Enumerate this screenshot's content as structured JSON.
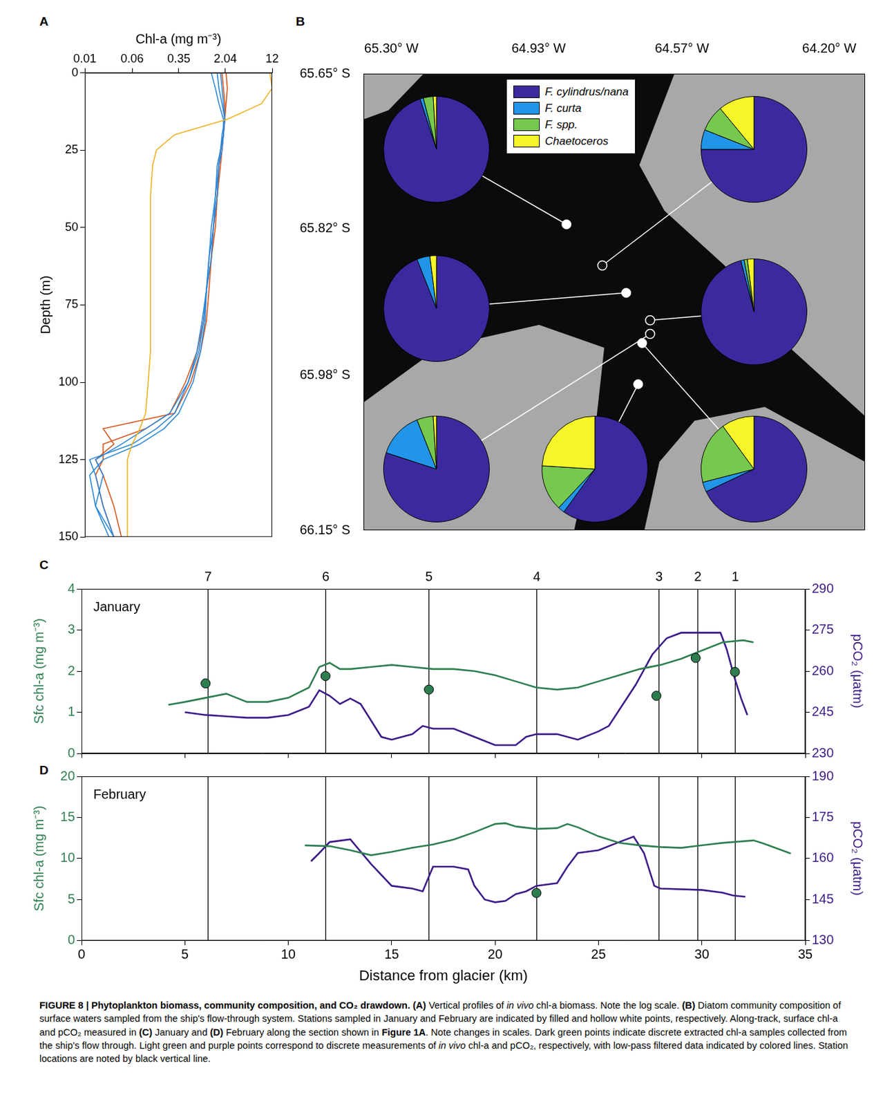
{
  "chart_data": [
    {
      "type": "line",
      "panel": "A",
      "log": "x",
      "grid": false,
      "x_label": "Chl-a (mg m⁻³)",
      "y_label": "Depth (m)",
      "xlim": [
        0.01,
        12
      ],
      "xticks": [
        0.01,
        0.06,
        0.35,
        2.04,
        12
      ],
      "ylim": [
        0,
        150
      ],
      "yticks": [
        0,
        25,
        50,
        75,
        100,
        125,
        150
      ],
      "y": [
        0,
        5,
        10,
        15,
        20,
        25,
        30,
        40,
        50,
        60,
        70,
        80,
        90,
        100,
        110,
        115,
        120,
        125,
        130,
        140,
        150
      ],
      "series": [
        {
          "color": "#edb120",
          "values": [
            11,
            12,
            8,
            2.2,
            0.3,
            0.15,
            0.13,
            0.12,
            0.12,
            0.12,
            0.12,
            0.12,
            0.12,
            0.11,
            0.1,
            0.08,
            0.06,
            0.05,
            0.05,
            0.05,
            0.05
          ]
        },
        {
          "color": "#2a86d8",
          "values": [
            1.5,
            1.6,
            1.8,
            2.0,
            1.9,
            1.8,
            1.6,
            1.5,
            1.3,
            1.2,
            1.0,
            0.9,
            0.75,
            0.5,
            0.3,
            0.15,
            0.06,
            0.012,
            0.015,
            0.02,
            0.03
          ]
        },
        {
          "color": "#2a86d8",
          "values": [
            1.2,
            1.4,
            1.6,
            1.9,
            1.9,
            1.7,
            1.6,
            1.4,
            1.3,
            1.1,
            1.0,
            0.95,
            0.8,
            0.6,
            0.35,
            0.2,
            0.08,
            0.02,
            0.012,
            0.015,
            0.025
          ]
        },
        {
          "color": "#2a86d8",
          "values": [
            1.7,
            1.8,
            1.9,
            2.0,
            1.8,
            1.7,
            1.5,
            1.4,
            1.2,
            1.1,
            1.0,
            0.85,
            0.7,
            0.5,
            0.25,
            0.1,
            0.04,
            0.015,
            0.02,
            0.015,
            0.03
          ]
        },
        {
          "color": "#d95319",
          "values": [
            1.8,
            1.9,
            2.0,
            2.0,
            1.9,
            1.7,
            1.6,
            1.5,
            1.3,
            1.2,
            1.1,
            1.0,
            0.8,
            0.55,
            0.3,
            0.02,
            0.03,
            0.015,
            0.02,
            0.03,
            0.04
          ]
        },
        {
          "color": "#d95319",
          "values": [
            2.1,
            2.2,
            2.1,
            2.0,
            1.9,
            1.8,
            1.7,
            1.5,
            1.4,
            1.2,
            1.0,
            0.9,
            0.7,
            0.45,
            0.25,
            0.1,
            0.02,
            0.02,
            0.015,
            0.02,
            0.03
          ]
        }
      ]
    },
    {
      "type": "pie",
      "panel": "B",
      "legend": "top",
      "categories": [
        "F. cylindrus/nana",
        "F. curta",
        "F. spp.",
        "Chaetoceros"
      ],
      "colors": [
        "#3b2a9e",
        "#2196e8",
        "#77c84e",
        "#f5f52a"
      ],
      "xlim": [
        -65.37,
        -64.11
      ],
      "xticks": [
        {
          "value": -65.3,
          "label": "65.30° W"
        },
        {
          "value": -64.93,
          "label": "64.93° W"
        },
        {
          "value": -64.57,
          "label": "64.57° W"
        },
        {
          "value": -64.2,
          "label": "64.20° W"
        }
      ],
      "ylim": [
        -66.15,
        -65.65
      ],
      "yticks": [
        {
          "value": -65.65,
          "label": "65.65° S"
        },
        {
          "value": -65.82,
          "label": "65.82° S"
        },
        {
          "value": -65.98,
          "label": "65.98° S"
        },
        {
          "value": -66.15,
          "label": "66.15° S"
        }
      ],
      "stations": [
        {
          "lon": -64.86,
          "lat": -65.815,
          "marker": "filled",
          "values": [
            95,
            1,
            3,
            1
          ]
        },
        {
          "lon": -64.77,
          "lat": -65.86,
          "marker": "hollow",
          "values": [
            75,
            6,
            8,
            11
          ]
        },
        {
          "lon": -64.71,
          "lat": -65.89,
          "marker": "filled",
          "values": [
            94,
            4,
            0,
            2
          ]
        },
        {
          "lon": -64.65,
          "lat": -65.92,
          "marker": "hollow",
          "values": [
            96,
            1,
            1,
            2
          ]
        },
        {
          "lon": -64.65,
          "lat": -65.935,
          "marker": "hollow",
          "values": [
            80,
            14,
            5,
            1
          ]
        },
        {
          "lon": -64.67,
          "lat": -65.945,
          "marker": "filled",
          "values": [
            68,
            3,
            19,
            10
          ]
        },
        {
          "lon": -64.68,
          "lat": -65.99,
          "marker": "filled",
          "values": [
            60,
            2,
            14,
            24
          ]
        }
      ]
    },
    {
      "type": "line",
      "panel": "C",
      "annotation": "January",
      "grid": false,
      "tick_labels": "y",
      "y_label": "Sfc chl-a (mg m⁻³)",
      "y2_label": "pCO₂ (μatm)",
      "xlim": [
        0,
        35
      ],
      "xticks": [
        0,
        5,
        10,
        15,
        20,
        25,
        30,
        35
      ],
      "ylim": [
        0,
        4
      ],
      "yticks": [
        0,
        1,
        2,
        3,
        4
      ],
      "y2lim": [
        230,
        290
      ],
      "y2ticks": [
        230,
        245,
        260,
        275,
        290
      ],
      "stations": {
        "x": [
          6.1,
          11.8,
          16.8,
          22.0,
          27.9,
          29.8,
          31.6
        ],
        "labels": [
          "7",
          "6",
          "5",
          "4",
          "3",
          "2",
          "1"
        ]
      },
      "series": [
        {
          "type": "line",
          "color": "#2e7f4f",
          "x": [
            4.2,
            5,
            6,
            7,
            7.5,
            8,
            9,
            10,
            11,
            11.5,
            12,
            12.5,
            13,
            14,
            15,
            16,
            17,
            18,
            19,
            20,
            21,
            22,
            23,
            24,
            25,
            26,
            27,
            28,
            29,
            30,
            31,
            32,
            32.5
          ],
          "values": [
            1.18,
            1.25,
            1.35,
            1.45,
            1.35,
            1.25,
            1.25,
            1.35,
            1.6,
            2.1,
            2.2,
            2.05,
            2.05,
            2.1,
            2.15,
            2.1,
            2.05,
            2.05,
            2.0,
            1.9,
            1.75,
            1.6,
            1.55,
            1.6,
            1.75,
            1.9,
            2.05,
            2.15,
            2.3,
            2.5,
            2.7,
            2.75,
            2.7
          ]
        },
        {
          "type": "line",
          "color": "#3d1a87",
          "axis": "y2",
          "x": [
            5,
            6,
            7,
            8,
            9,
            10,
            11,
            11.5,
            12,
            12.5,
            13,
            13.5,
            14,
            14.5,
            15,
            16,
            16.5,
            17,
            18,
            19,
            20,
            21,
            21.5,
            22,
            23,
            24,
            25,
            25.5,
            26.8,
            27.6,
            28.3,
            29,
            30.9,
            31.2,
            31.6,
            31.9,
            32.2
          ],
          "values": [
            245,
            244,
            243.5,
            243,
            243,
            244,
            247,
            253,
            251,
            248,
            250,
            248,
            242,
            236,
            235,
            237,
            240,
            239,
            239,
            236,
            233,
            233,
            236,
            237,
            237,
            235,
            238,
            240,
            255,
            266,
            272,
            274,
            274,
            268,
            257,
            250,
            244
          ]
        },
        {
          "type": "scatter",
          "marker": "circle",
          "color": "#2e7d4f",
          "x": [
            6.0,
            11.8,
            16.8,
            27.8,
            29.7,
            31.6
          ],
          "values": [
            1.7,
            1.88,
            1.55,
            1.4,
            2.32,
            1.98
          ]
        }
      ]
    },
    {
      "type": "line",
      "panel": "D",
      "annotation": "February",
      "grid": false,
      "x_label": "Distance from glacier (km)",
      "y_label": "Sfc chl-a (mg m⁻³)",
      "y2_label": "pCO₂ (μatm)",
      "xlim": [
        0,
        35
      ],
      "xticks": [
        0,
        5,
        10,
        15,
        20,
        25,
        30,
        35
      ],
      "ylim": [
        0,
        20
      ],
      "yticks": [
        0,
        5,
        10,
        15,
        20
      ],
      "y2lim": [
        130,
        190
      ],
      "y2ticks": [
        130,
        145,
        160,
        175,
        190
      ],
      "stations": {
        "x": [
          6.1,
          11.8,
          16.8,
          22.0,
          27.9,
          29.8,
          31.6
        ]
      },
      "series": [
        {
          "type": "line",
          "color": "#2e7f4f",
          "x": [
            10.8,
            12,
            13,
            14,
            15,
            16,
            17,
            18,
            19,
            20,
            20.5,
            21,
            22,
            23,
            23.5,
            24,
            25,
            26,
            27,
            28,
            29,
            30,
            31,
            32,
            32.5,
            33,
            34.3
          ],
          "values": [
            11.6,
            11.5,
            11.0,
            10.4,
            10.8,
            11.3,
            11.7,
            12.3,
            13.2,
            14.2,
            14.3,
            13.9,
            13.6,
            13.7,
            14.2,
            13.8,
            12.7,
            11.9,
            11.6,
            11.4,
            11.3,
            11.6,
            11.9,
            12.1,
            12.2,
            11.8,
            10.6
          ]
        },
        {
          "type": "line",
          "color": "#3d1a87",
          "axis": "y2",
          "x": [
            11.1,
            11.5,
            12,
            13,
            14,
            15,
            16,
            16.5,
            17,
            18,
            18.7,
            19,
            19.5,
            20,
            20.5,
            21,
            21.5,
            22,
            23,
            23.5,
            24,
            25,
            26,
            26.7,
            27.2,
            27.7,
            28,
            30,
            31,
            31.5,
            32.1
          ],
          "values": [
            159,
            162,
            166,
            167,
            158,
            150,
            149,
            148,
            157,
            157,
            156,
            150,
            145,
            144,
            144.5,
            147,
            148,
            150,
            151,
            157,
            162,
            163,
            166,
            168,
            162,
            150,
            149,
            148.5,
            147.5,
            146.5,
            146
          ]
        },
        {
          "type": "scatter",
          "marker": "circle",
          "color": "#2e7d4f",
          "x": [
            22.0
          ],
          "values": [
            5.8
          ]
        }
      ]
    }
  ],
  "caption": [
    {
      "text": "FIGURE 8 | Phytoplankton biomass, community composition, and CO₂ drawdown.",
      "bold": true
    },
    {
      "text": " (A)",
      "bold": true
    },
    {
      "text": " Vertical profiles of "
    },
    {
      "text": "in vivo",
      "italic": true
    },
    {
      "text": " chl-a biomass. Note the log scale. "
    },
    {
      "text": "(B)",
      "bold": true
    },
    {
      "text": " Diatom community composition of surface waters sampled from the ship's flow-through system. Stations sampled in January and February are indicated by filled and hollow white points, respectively. Along-track, surface chl-a and pCO₂ measured in "
    },
    {
      "text": "(C)",
      "bold": true
    },
    {
      "text": " January and "
    },
    {
      "text": "(D)",
      "bold": true
    },
    {
      "text": " February along the section shown in "
    },
    {
      "text": "Figure 1A",
      "bold": true
    },
    {
      "text": ". Note changes in scales. Dark green points indicate discrete extracted chl-a samples collected from the ship's flow through. Light green and purple points correspond to discrete measurements of "
    },
    {
      "text": "in vivo",
      "italic": true
    },
    {
      "text": " chl-a and pCO₂, respectively, with low-pass filtered data indicated by colored lines. Station locations are noted by black vertical line."
    }
  ]
}
